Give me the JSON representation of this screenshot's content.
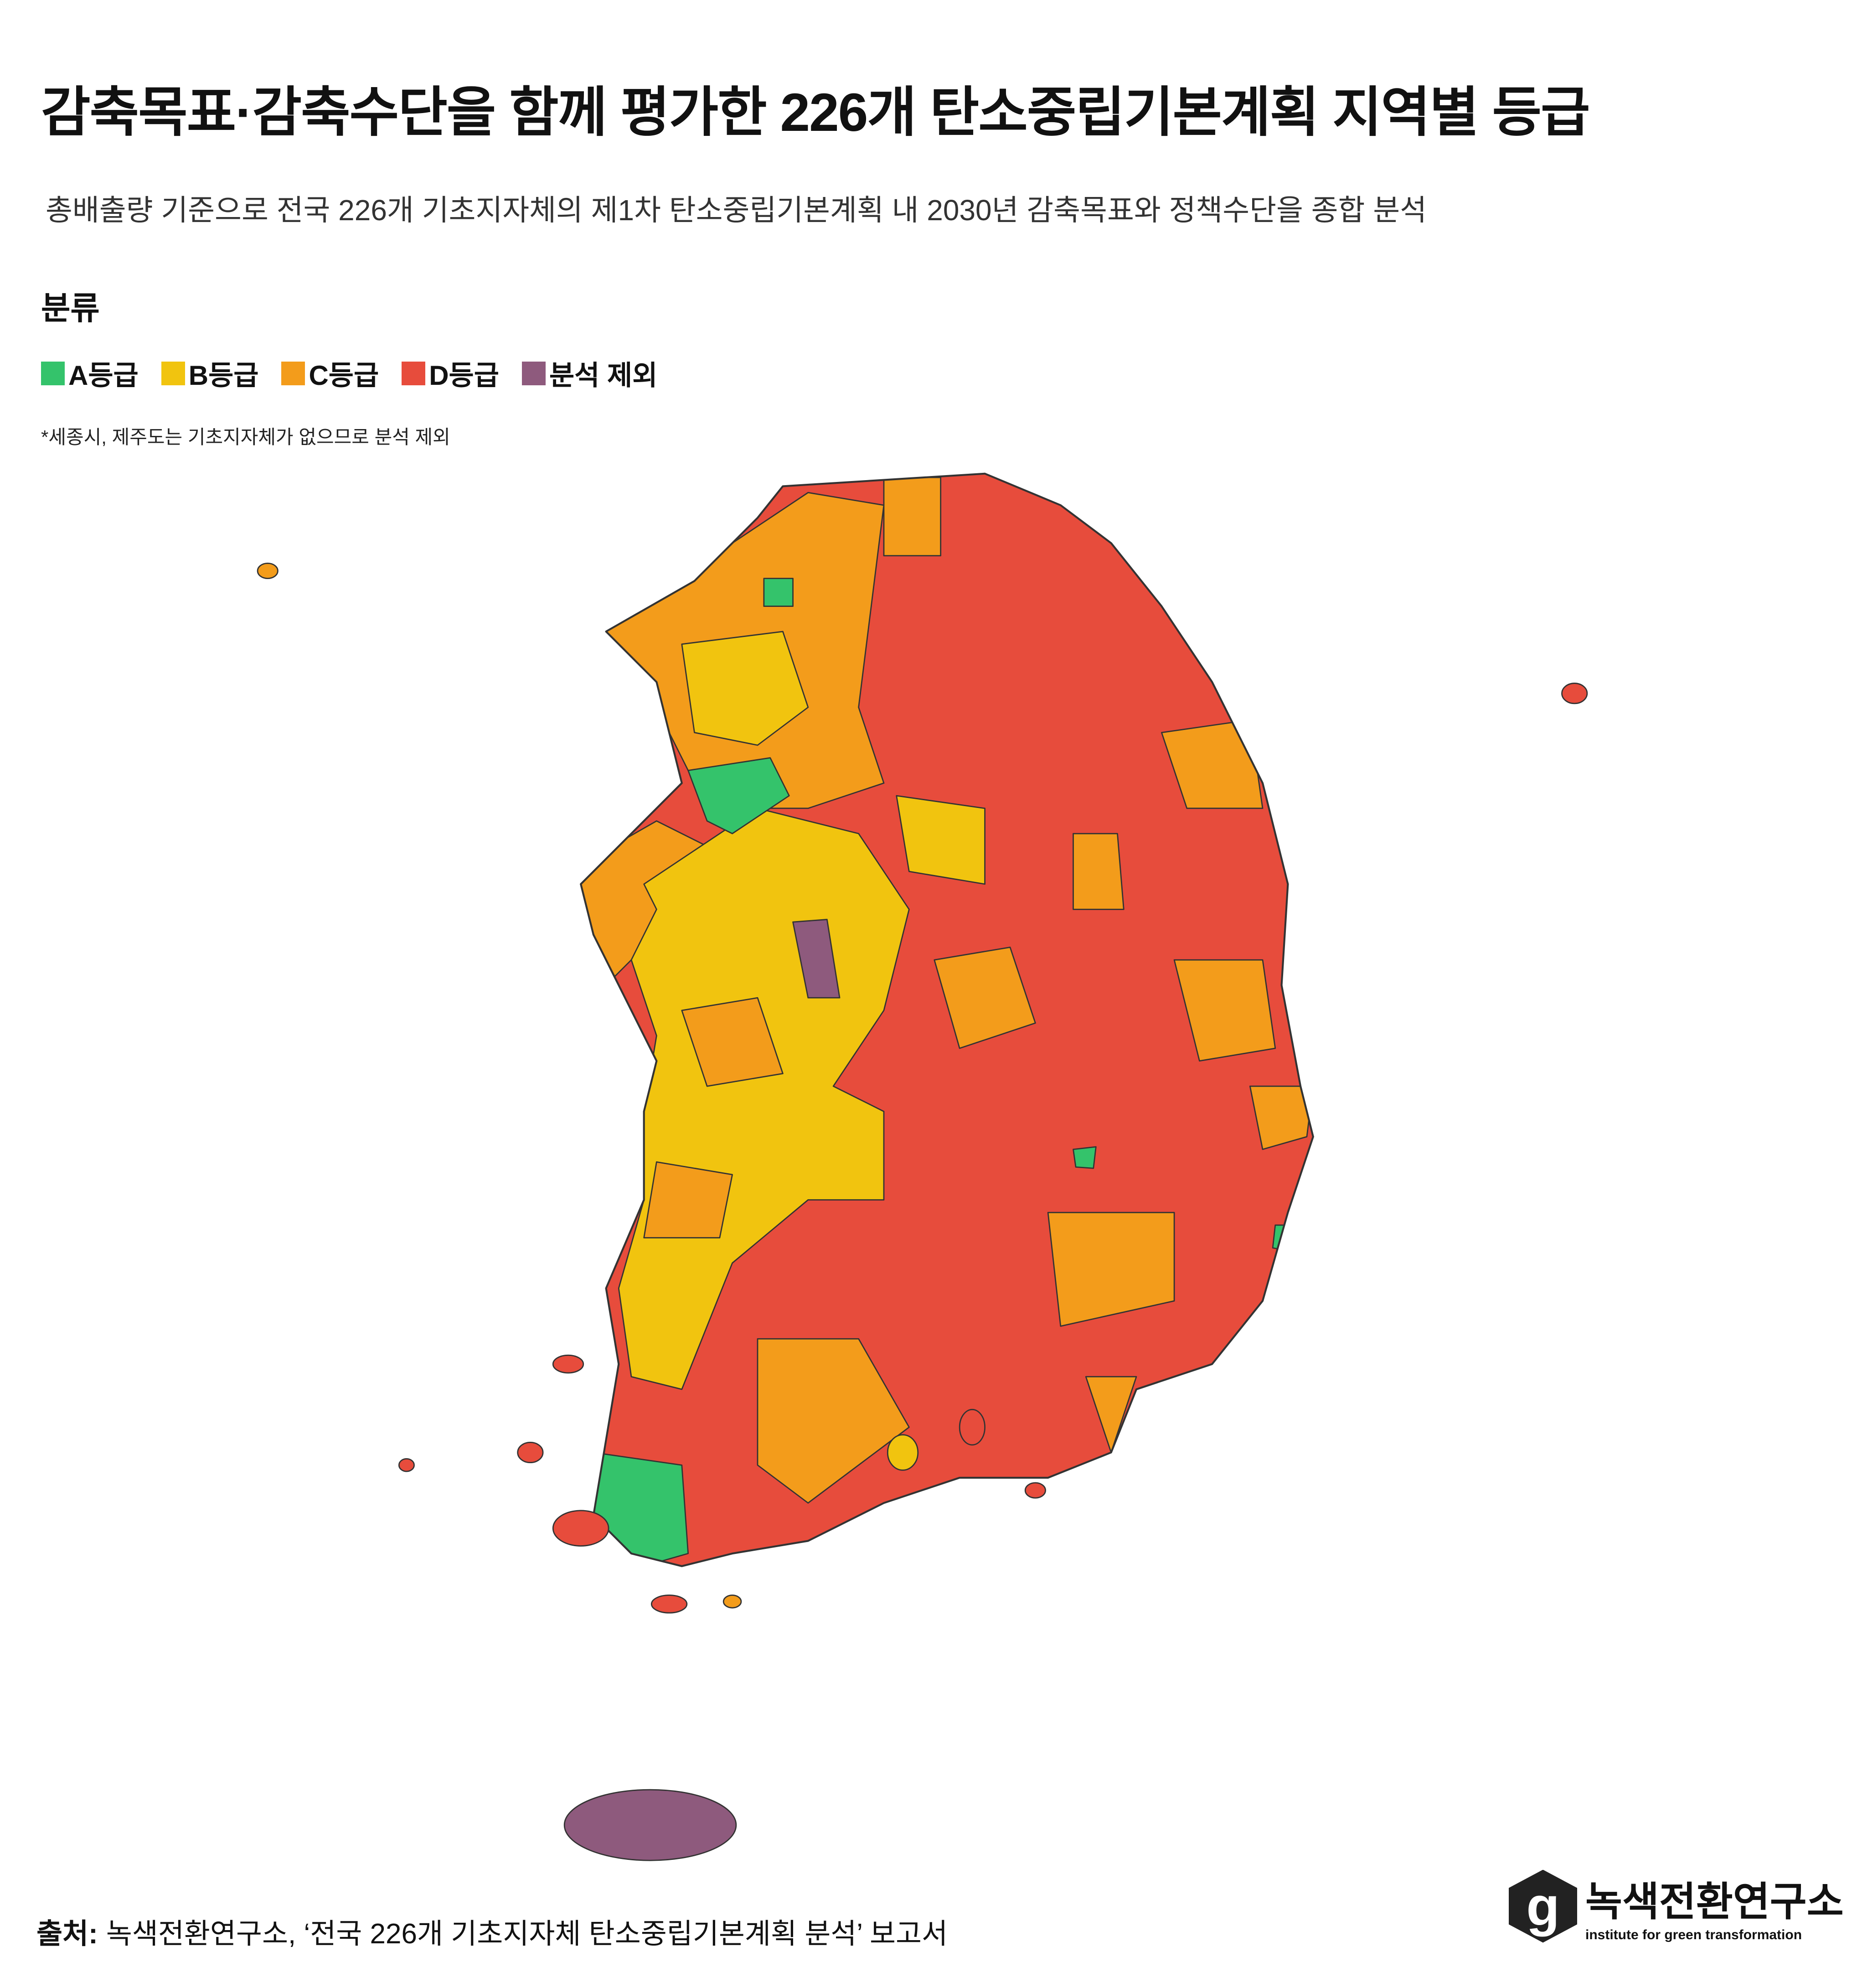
{
  "header": {
    "title": "감축목표·감축수단을 함께 평가한 226개 탄소중립기본계획 지역별 등급",
    "subtitle": "총배출량 기준으로 전국 226개 기초지자체의 제1차 탄소중립기본계획 내 2030년 감축목표와 정책수단을 종합 분석"
  },
  "legend": {
    "title": "분류",
    "items": [
      {
        "label": "A등급",
        "color": "#34c36b"
      },
      {
        "label": "B등급",
        "color": "#f1c40f"
      },
      {
        "label": "C등급",
        "color": "#f39c1b"
      },
      {
        "label": "D등급",
        "color": "#e74c3c"
      },
      {
        "label": "분석 제외",
        "color": "#8e5a7d"
      }
    ],
    "note": "*세종시, 제주도는 기초지자체가 없으므로 분석 제외"
  },
  "source": {
    "label": "출처:",
    "text": "녹색전환연구소, ‘전국 226개 기초지자체 탄소중립기본계획 분석’ 보고서"
  },
  "logo": {
    "mark": "g",
    "name": "녹색전환연구소",
    "tagline": "institute for green transformation"
  }
}
